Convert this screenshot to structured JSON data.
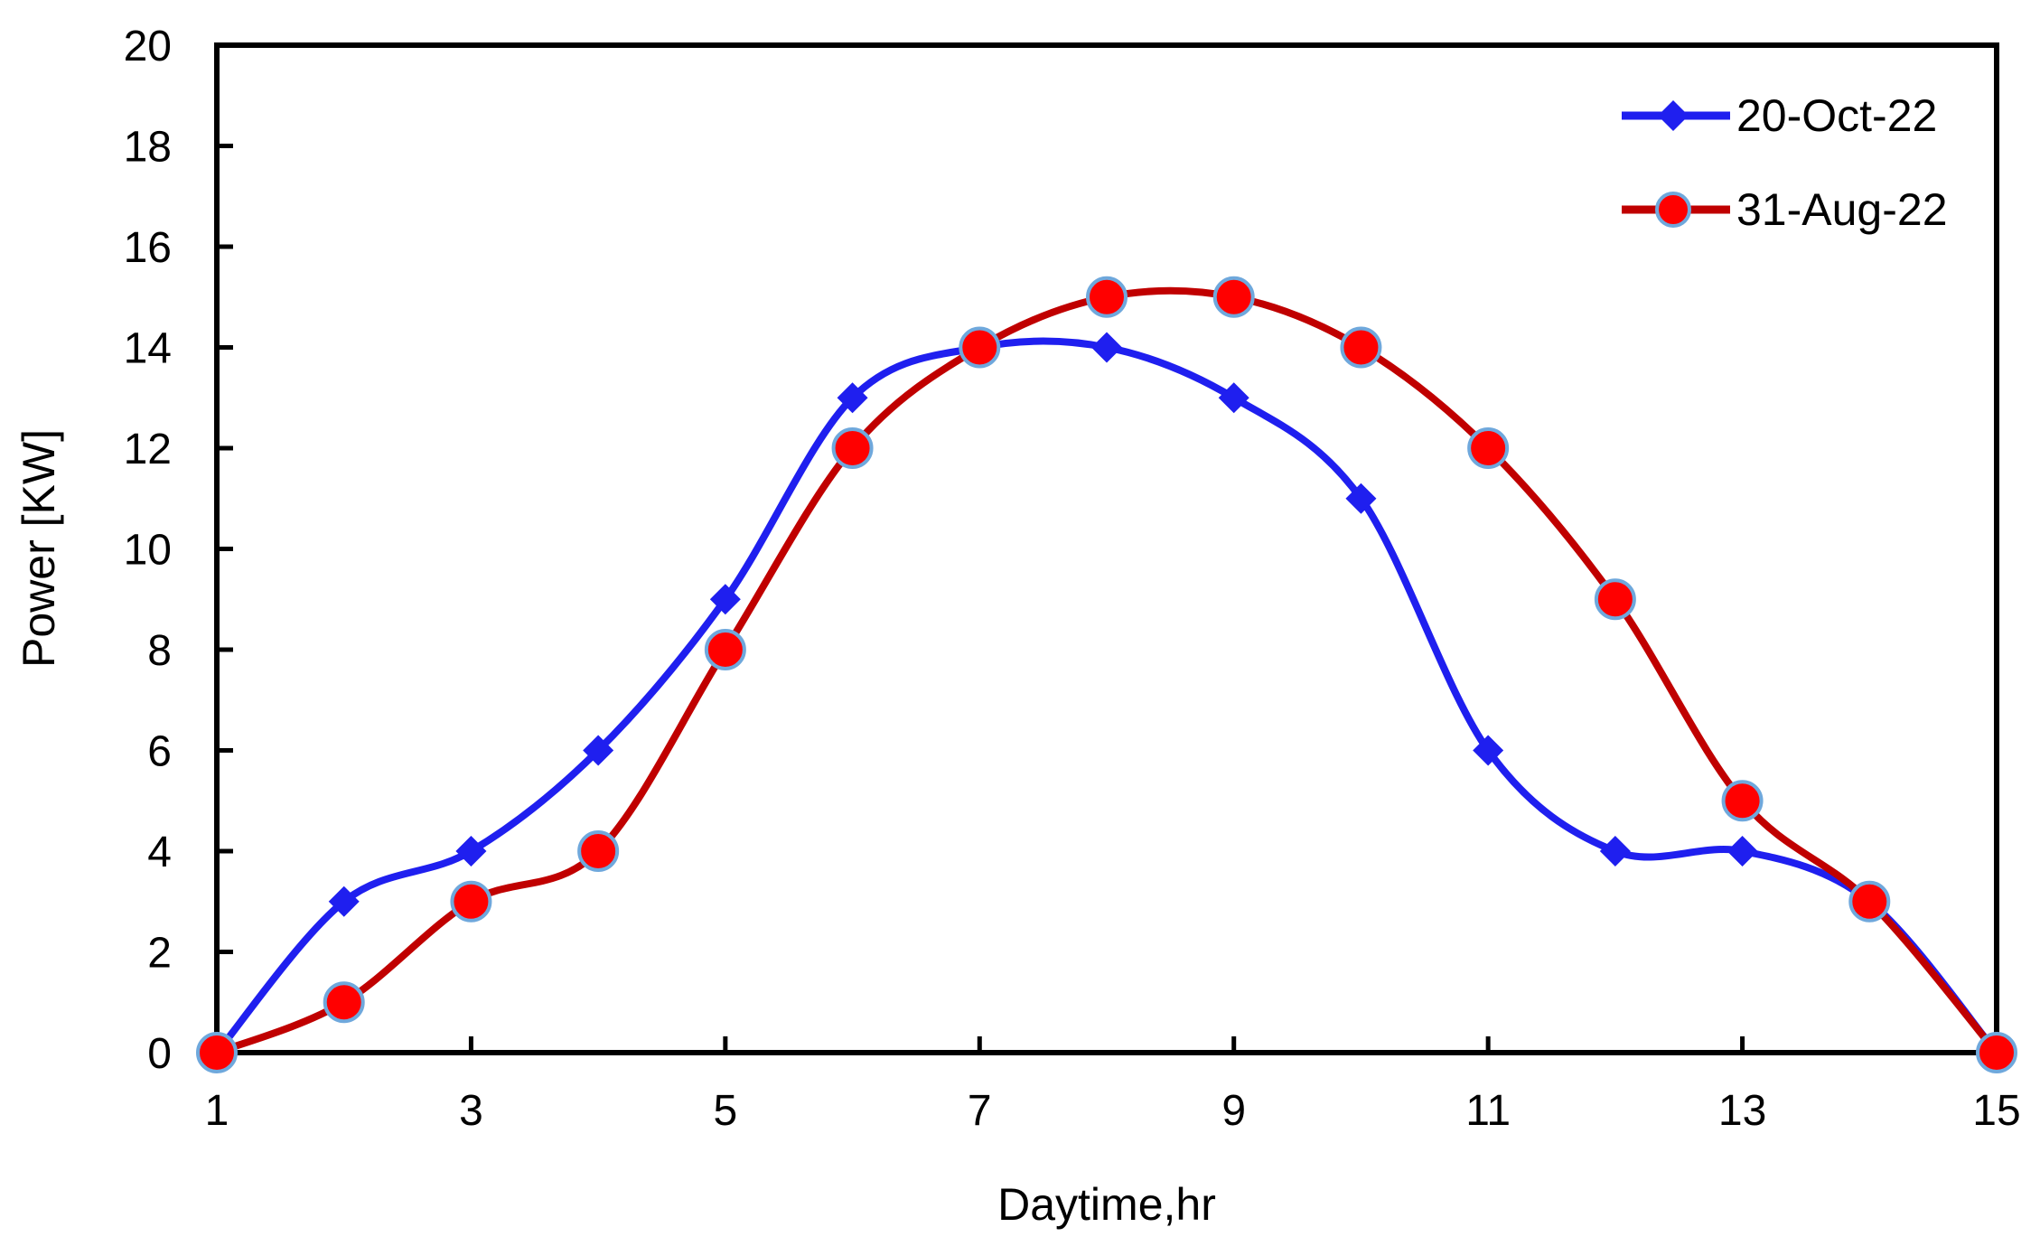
{
  "chart_data": {
    "type": "line",
    "title": "",
    "xlabel": "Daytime,hr",
    "ylabel": "Power [KW]",
    "xlim": [
      1,
      15
    ],
    "ylim": [
      0,
      20
    ],
    "x_ticks": [
      1,
      3,
      5,
      7,
      9,
      11,
      13,
      15
    ],
    "y_ticks": [
      0,
      2,
      4,
      6,
      8,
      10,
      12,
      14,
      16,
      18,
      20
    ],
    "grid": false,
    "legend_position": "top-right",
    "x": [
      1,
      2,
      3,
      4,
      5,
      6,
      7,
      8,
      9,
      10,
      11,
      12,
      13,
      14,
      15
    ],
    "series": [
      {
        "name": "20-Oct-22",
        "marker": "diamond",
        "color": "#1f1fef",
        "values": [
          0,
          3,
          4,
          6,
          9,
          13,
          14,
          14,
          13,
          11,
          6,
          4,
          4,
          3,
          0
        ]
      },
      {
        "name": "31-Aug-22",
        "marker": "circle",
        "color": "#c00000",
        "marker_fill": "#ff0000",
        "marker_edge": "#6fa8dc",
        "values": [
          0,
          1,
          3,
          4,
          8,
          12,
          14,
          15,
          15,
          14,
          12,
          9,
          5,
          3,
          0
        ]
      }
    ]
  }
}
